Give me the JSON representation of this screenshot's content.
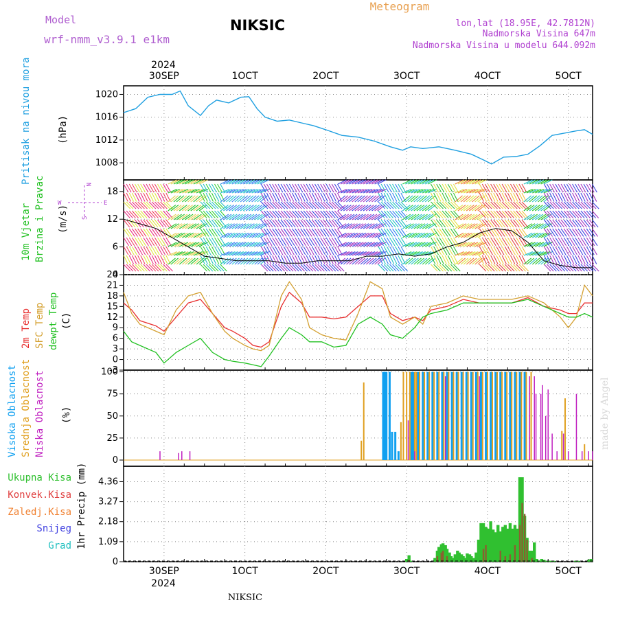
{
  "header": {
    "model_label": "Model",
    "model_name": "wrf-nmm_v3.9.1 e1km",
    "title": "NIKSIC",
    "meteogram_label": "Meteogram",
    "lonlat": "lon,lat (18.95E, 42.7812N)",
    "elevation": "Nadmorska Visina 647m",
    "model_elevation": "Nadmorska Visina u modelu 644.092m",
    "footer": "NIKSIC",
    "watermark": "made by Angel"
  },
  "colors": {
    "pressure": "#1e9fe0",
    "temp2m": "#e83030",
    "sfc": "#d4a030",
    "dewpt": "#20c020",
    "high_cloud": "#10a0f0",
    "mid_cloud": "#e0a020",
    "low_cloud": "#c020c0",
    "total_precip": "#30c030",
    "conv_precip": "#e04040",
    "frozen_precip": "#f08030",
    "snow": "#4040e0",
    "graupel": "#20c0c0"
  },
  "axes": {
    "top_year": "2024",
    "bottom_year": "2024",
    "x_ticks": [
      "30SEP",
      "1OCT",
      "2OCT",
      "3OCT",
      "4OCT",
      "5OCT"
    ],
    "x_range_days": [
      -0.5,
      5.3
    ]
  },
  "chart_data": [
    {
      "type": "line",
      "panel": "pressure",
      "ylabel_left": "Pritisak na nivou mora",
      "unit": "(hPa)",
      "ylim": [
        1005,
        1021.5
      ],
      "yticks": [
        "1008",
        "1012",
        "1016",
        "1020"
      ],
      "grid": true,
      "series": [
        {
          "x": [
            -0.5,
            -0.35,
            -0.2,
            -0.05,
            0.1,
            0.2,
            0.3,
            0.45,
            0.55,
            0.65,
            0.8,
            0.95,
            1.05,
            1.15,
            1.25,
            1.4,
            1.55,
            1.7,
            1.85,
            2.0,
            2.2,
            2.4,
            2.6,
            2.8,
            2.95,
            3.05,
            3.2,
            3.4,
            3.6,
            3.8,
            3.95,
            4.05,
            4.2,
            4.35,
            4.5,
            4.65,
            4.8,
            4.95,
            5.1,
            5.2,
            5.3
          ],
          "values": [
            1016.8,
            1017.5,
            1019.5,
            1020.0,
            1020.0,
            1020.6,
            1018.0,
            1016.3,
            1018.0,
            1019.0,
            1018.5,
            1019.5,
            1019.6,
            1017.5,
            1016.0,
            1015.3,
            1015.5,
            1015.0,
            1014.5,
            1013.8,
            1012.8,
            1012.5,
            1011.8,
            1010.8,
            1010.2,
            1010.8,
            1010.5,
            1010.8,
            1010.2,
            1009.5,
            1008.5,
            1007.8,
            1009.0,
            1009.1,
            1009.5,
            1011.0,
            1012.8,
            1013.2,
            1013.6,
            1013.8,
            1013.0
          ]
        }
      ]
    },
    {
      "type": "line",
      "panel": "wind",
      "ylabel_left_1": "10m Vjetar",
      "ylabel_left_2": "Brzina i Pravac",
      "unit": "(m/s)",
      "legend_compass": {
        "n": "N",
        "w": "W",
        "e": "E",
        "s": "S"
      },
      "ylim": [
        0,
        20.5
      ],
      "yticks": [
        "0",
        "6",
        "12",
        "18"
      ],
      "grid": true,
      "series": [
        {
          "x": [
            -0.5,
            -0.3,
            -0.1,
            0.1,
            0.3,
            0.5,
            0.7,
            0.9,
            1.1,
            1.3,
            1.5,
            1.7,
            1.9,
            2.1,
            2.3,
            2.5,
            2.7,
            2.9,
            3.1,
            3.3,
            3.5,
            3.7,
            3.9,
            4.1,
            4.3,
            4.5,
            4.7,
            4.9,
            5.1,
            5.3
          ],
          "values": [
            12,
            11,
            10,
            8,
            6,
            4,
            3.5,
            3,
            3,
            3,
            2.5,
            2.5,
            3,
            3,
            3,
            4,
            4,
            4.5,
            4,
            4.5,
            6,
            7,
            9,
            10,
            9.5,
            7,
            3,
            2,
            1.5,
            1.5
          ]
        }
      ]
    },
    {
      "type": "line",
      "panel": "temperature",
      "ylabel_1": "2m Temp",
      "ylabel_2": "SFC Temp",
      "ylabel_3": "dewpt Temp",
      "unit": "(C)",
      "ylim": [
        -3,
        24
      ],
      "yticks": [
        "-3",
        "0",
        "3",
        "6",
        "9",
        "12",
        "15",
        "18",
        "21",
        "24"
      ],
      "grid": true,
      "x": [
        -0.5,
        -0.4,
        -0.3,
        -0.1,
        0.0,
        0.15,
        0.3,
        0.45,
        0.6,
        0.75,
        0.85,
        1.0,
        1.1,
        1.2,
        1.3,
        1.45,
        1.55,
        1.7,
        1.8,
        1.95,
        2.1,
        2.25,
        2.4,
        2.55,
        2.7,
        2.8,
        2.95,
        3.1,
        3.2,
        3.3,
        3.5,
        3.7,
        3.9,
        4.1,
        4.3,
        4.5,
        4.7,
        4.9,
        5.0,
        5.1,
        5.2,
        5.3
      ],
      "series": [
        {
          "name": "2m Temp",
          "values": [
            16,
            14,
            11,
            9.5,
            8,
            12,
            16,
            17,
            13,
            9,
            8,
            6,
            4,
            3.5,
            5,
            15,
            19,
            16,
            12,
            12,
            11.5,
            12,
            15,
            18,
            18,
            13,
            11,
            12,
            11,
            14,
            15,
            17,
            16,
            16,
            16,
            17.5,
            15,
            14,
            13,
            13,
            16,
            16
          ]
        },
        {
          "name": "SFC Temp",
          "values": [
            19,
            13,
            10,
            8,
            7,
            14,
            18,
            19,
            13,
            8,
            6,
            4,
            3,
            2.5,
            4,
            18,
            22,
            17,
            9,
            7,
            6,
            5.5,
            13,
            22,
            20,
            12,
            10,
            12,
            10,
            15,
            16,
            18,
            17,
            17,
            17,
            18,
            16,
            12,
            9,
            12,
            21,
            18
          ]
        },
        {
          "name": "dewpt Temp",
          "values": [
            8,
            5,
            4,
            2,
            -1,
            2,
            4,
            6,
            2,
            0,
            -0.5,
            -1,
            -1.5,
            -2,
            1,
            6,
            9,
            7,
            5,
            5,
            3.5,
            4,
            10,
            12,
            10,
            7,
            6,
            9,
            12,
            13,
            14,
            16,
            16,
            16,
            16,
            17,
            15,
            13,
            12,
            12,
            13,
            12
          ]
        }
      ]
    },
    {
      "type": "bar",
      "panel": "clouds",
      "ylabel_1": "Visoka Oblacnost",
      "ylabel_2": "Srednja Oblacnost",
      "ylabel_3": "Niska Oblacnost",
      "unit": "(%)",
      "ylim": [
        -7,
        102
      ],
      "yticks": [
        "0",
        "25",
        "50",
        "75",
        "100"
      ],
      "grid": true,
      "high": {
        "x": [
          2.71,
          2.73,
          2.75,
          2.79,
          2.82,
          2.86,
          2.9,
          3.06,
          3.08,
          3.14,
          3.2,
          3.26,
          3.32,
          3.38,
          3.44,
          3.5,
          3.56,
          3.62,
          3.68,
          3.74,
          3.8,
          3.86,
          3.92,
          3.98,
          4.04,
          4.1,
          4.16,
          4.22,
          4.28,
          4.34,
          4.4,
          4.46
        ],
        "values": [
          100,
          100,
          100,
          100,
          32,
          32,
          10,
          100,
          100,
          100,
          100,
          100,
          100,
          100,
          100,
          100,
          100,
          100,
          100,
          100,
          100,
          100,
          100,
          100,
          100,
          100,
          100,
          100,
          100,
          100,
          100,
          100
        ]
      },
      "mid": {
        "x": [
          2.44,
          2.47,
          2.93,
          2.96,
          3.0,
          3.04,
          3.1,
          3.12,
          3.16,
          3.22,
          3.28,
          3.34,
          3.4,
          3.46,
          3.52,
          3.58,
          3.64,
          3.7,
          3.76,
          3.82,
          3.88,
          3.94,
          4.0,
          4.06,
          4.12,
          4.18,
          4.24,
          4.3,
          4.36,
          4.42,
          4.48,
          4.54,
          4.92,
          4.96,
          5.2
        ],
        "values": [
          22,
          88,
          43,
          100,
          100,
          100,
          100,
          100,
          100,
          100,
          100,
          100,
          100,
          100,
          100,
          100,
          100,
          100,
          100,
          100,
          100,
          100,
          100,
          100,
          100,
          100,
          100,
          100,
          100,
          100,
          100,
          100,
          33,
          70,
          18
        ]
      },
      "low": {
        "x": [
          -0.05,
          0.18,
          0.22,
          0.32,
          3.02,
          3.1,
          3.48,
          3.9,
          4.52,
          4.58,
          4.6,
          4.66,
          4.68,
          4.72,
          4.75,
          4.8,
          4.86,
          4.94,
          5.0,
          5.1,
          5.17,
          5.25,
          5.3
        ],
        "values": [
          10,
          8,
          10,
          10,
          45,
          10,
          95,
          95,
          95,
          95,
          75,
          75,
          85,
          50,
          80,
          30,
          10,
          30,
          10,
          75,
          10,
          10,
          10
        ]
      }
    },
    {
      "type": "bar",
      "panel": "precip",
      "legend_1": "Ukupna Kisa",
      "legend_2": "Konvek.Kisa",
      "legend_3": "Zaledj.Kisa",
      "legend_4": "Snijeg",
      "legend_5": "Grad",
      "ylabel": "1hr Precip (mm)",
      "ylim": [
        0,
        5.2
      ],
      "yticks": [
        "0",
        "1.09",
        "2.18",
        "3.27",
        "4.36"
      ],
      "grid": true,
      "total": {
        "x": [
          3.0,
          3.03,
          3.05,
          3.35,
          3.38,
          3.4,
          3.43,
          3.45,
          3.48,
          3.5,
          3.53,
          3.55,
          3.58,
          3.6,
          3.63,
          3.65,
          3.68,
          3.7,
          3.73,
          3.75,
          3.78,
          3.8,
          3.83,
          3.86,
          3.89,
          3.92,
          3.95,
          3.98,
          4.01,
          4.04,
          4.07,
          4.1,
          4.13,
          4.16,
          4.19,
          4.22,
          4.25,
          4.28,
          4.31,
          4.34,
          4.37,
          4.4,
          4.43,
          4.46,
          4.49,
          4.52,
          4.55,
          4.58,
          4.61,
          4.64,
          4.67,
          4.7,
          4.73,
          4.76,
          4.79,
          4.82,
          5.09,
          5.12,
          5.25,
          5.28
        ],
        "values": [
          0.15,
          0.35,
          0.05,
          0.2,
          0.6,
          0.8,
          0.95,
          1.0,
          0.9,
          0.7,
          0.5,
          0.3,
          0.2,
          0.4,
          0.6,
          0.5,
          0.4,
          0.3,
          0.2,
          0.45,
          0.4,
          0.3,
          0.2,
          0.5,
          1.2,
          2.1,
          2.1,
          1.9,
          1.8,
          2.2,
          1.75,
          1.6,
          2.0,
          1.65,
          1.9,
          2.0,
          1.8,
          2.1,
          1.8,
          2.0,
          1.8,
          4.6,
          4.6,
          2.5,
          1.3,
          0.6,
          0.6,
          1.05,
          0.15,
          0.05,
          0.15,
          0.1,
          0.05,
          0.05,
          0.05,
          0.05,
          0.05,
          0.05,
          0.1,
          0.15
        ]
      },
      "conv": {
        "x": [
          3.03,
          3.38,
          3.43,
          3.45,
          3.5,
          3.95,
          3.98,
          4.16,
          4.22,
          4.28,
          4.34,
          4.4,
          4.43,
          4.46,
          4.49,
          4.55
        ],
        "values": [
          0.1,
          0.3,
          0.5,
          0.6,
          0.3,
          0.7,
          0.9,
          0.6,
          0.3,
          0.4,
          0.9,
          2.0,
          3.2,
          2.6,
          1.2,
          0.2
        ]
      }
    }
  ]
}
